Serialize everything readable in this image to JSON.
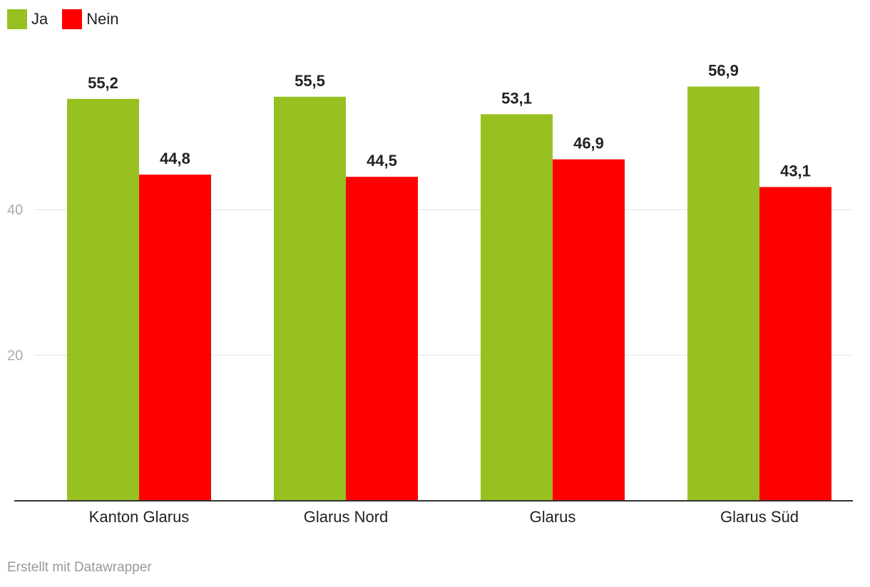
{
  "chart_data": {
    "type": "bar",
    "categories": [
      "Kanton Glarus",
      "Glarus Nord",
      "Glarus",
      "Glarus Süd"
    ],
    "series": [
      {
        "name": "Ja",
        "values": [
          55.2,
          55.5,
          53.1,
          56.9
        ],
        "color": "#97c121",
        "labels": [
          "55,2",
          "55,5",
          "53,1",
          "56,9"
        ]
      },
      {
        "name": "Nein",
        "values": [
          44.8,
          44.5,
          46.9,
          43.1
        ],
        "color": "#ff0000",
        "labels": [
          "44,8",
          "44,5",
          "46,9",
          "43,1"
        ]
      }
    ],
    "yticks": [
      20,
      40
    ],
    "ylim": [
      0,
      60
    ],
    "grid": true,
    "legend": "top-left"
  },
  "footer": {
    "credit": "Erstellt mit Datawrapper"
  }
}
